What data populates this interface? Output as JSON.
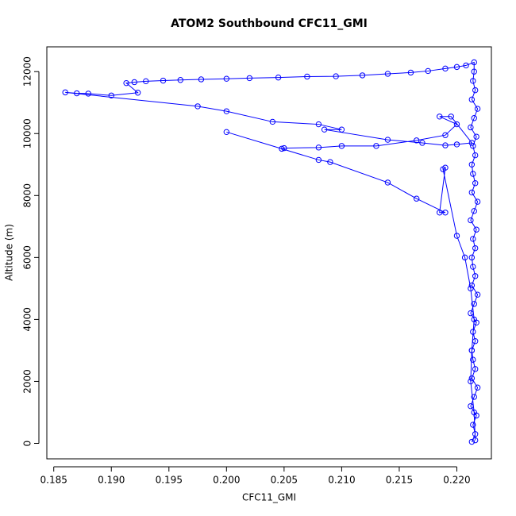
{
  "chart_data": {
    "type": "line",
    "title": "ATOM2 Southbound CFC11_GMI",
    "x_label": "CFC11_GMI",
    "y_label": "Altitude (m)",
    "xlim": [
      0.1844,
      0.223
    ],
    "ylim": [
      -500,
      12800
    ],
    "xticks": [
      0.185,
      {
        "value": 0.19,
        "label": "0.190"
      },
      0.195,
      {
        "value": 0.2,
        "label": "0.200"
      },
      0.205,
      {
        "value": 0.21,
        "label": "0.210"
      },
      0.215,
      {
        "value": 0.22,
        "label": "0.220"
      }
    ],
    "yticks": [
      0,
      2000,
      4000,
      6000,
      8000,
      10000,
      12000
    ],
    "grid": false,
    "series": [
      {
        "color": "#0000ff",
        "x": [
          0.2213,
          0.2216,
          0.2214,
          0.2217,
          0.2212,
          0.2215,
          0.2218,
          0.2213,
          0.2216,
          0.2214,
          0.2213,
          0.2216,
          0.2214,
          0.2217,
          0.2212,
          0.2215,
          0.2218,
          0.2213,
          0.2216,
          0.2214,
          0.2213,
          0.2216,
          0.2214,
          0.2217,
          0.2212,
          0.2215,
          0.2218,
          0.2213,
          0.2216,
          0.2214,
          0.2213,
          0.2216,
          0.2214,
          0.2217,
          0.2212,
          0.2215,
          0.2218,
          0.2213,
          0.2216,
          0.2214,
          0.2215,
          0.2215,
          0.2208,
          0.22,
          0.219,
          0.2175,
          0.216,
          0.214,
          0.2118,
          0.2095,
          0.207,
          0.2045,
          0.202,
          0.2,
          0.1978,
          0.196,
          0.1945,
          0.193,
          0.192,
          0.1913,
          0.1923,
          0.19,
          0.188,
          0.187,
          0.186,
          0.1975,
          0.2,
          0.204,
          0.208,
          0.21,
          0.2085,
          0.214,
          0.217,
          0.219,
          0.22,
          0.2213,
          0.2195,
          0.2185,
          0.22,
          0.219,
          0.2165,
          0.213,
          0.21,
          0.208,
          0.205,
          0.2048,
          0.2,
          0.208,
          0.209,
          0.214,
          0.2165,
          0.219,
          0.2185,
          0.219,
          0.2188,
          0.22,
          0.2207,
          0.2212,
          0.2215,
          0.2213,
          0.2212,
          0.2215,
          0.2216
        ],
        "values": [
          50,
          300,
          600,
          900,
          1200,
          1500,
          1800,
          2100,
          2400,
          2700,
          3000,
          3300,
          3600,
          3900,
          4200,
          4500,
          4800,
          5100,
          5400,
          5700,
          6000,
          6300,
          6600,
          6900,
          7200,
          7500,
          7800,
          8100,
          8400,
          8700,
          9000,
          9300,
          9600,
          9900,
          10200,
          10500,
          10800,
          11100,
          11400,
          11700,
          12000,
          12300,
          12200,
          12150,
          12100,
          12020,
          11970,
          11930,
          11880,
          11850,
          11840,
          11810,
          11790,
          11770,
          11750,
          11730,
          11710,
          11690,
          11660,
          11630,
          11320,
          11230,
          11290,
          11300,
          11330,
          10880,
          10720,
          10380,
          10300,
          10130,
          10130,
          9800,
          9700,
          9620,
          9650,
          9700,
          10550,
          10550,
          10300,
          9950,
          9780,
          9600,
          9600,
          9550,
          9530,
          9510,
          10050,
          9150,
          9080,
          8420,
          7900,
          7450,
          7450,
          8900,
          8850,
          6700,
          6000,
          5000,
          4000,
          3000,
          2000,
          1000,
          100
        ]
      }
    ]
  }
}
